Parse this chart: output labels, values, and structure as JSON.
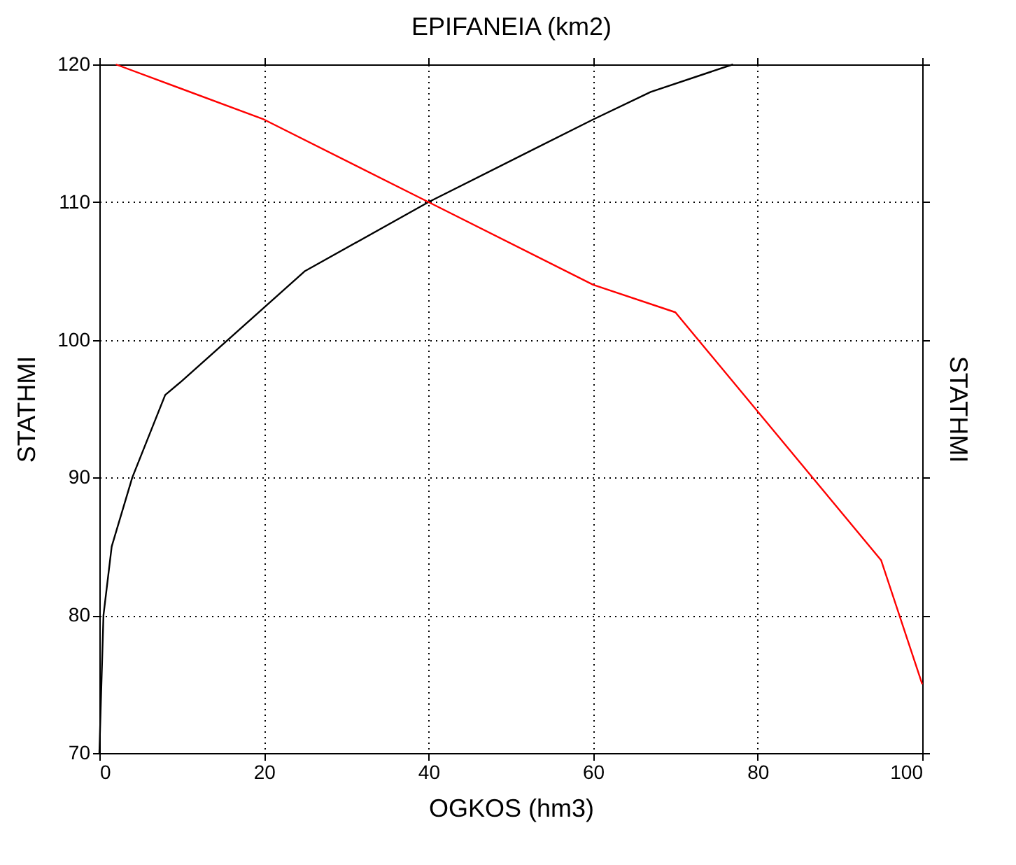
{
  "chart_data": {
    "type": "line",
    "xlabel": "OGKOS (hm3)",
    "x2label": "EPIFANEIA (km2)",
    "ylabel": "STATHMI",
    "y2label": "STATHMI",
    "xlim": [
      0,
      100
    ],
    "xticks": [
      0,
      20,
      40,
      60,
      80,
      100
    ],
    "ylim": [
      70,
      120
    ],
    "yticks": [
      70,
      80,
      90,
      100,
      110,
      120
    ],
    "grid": true,
    "line_style": "solid",
    "marker": "none",
    "series": [
      {
        "color": "#000000",
        "x": [
          0,
          0.5,
          1.5,
          4,
          8,
          10,
          25,
          40,
          60,
          67,
          77
        ],
        "values": [
          70,
          80,
          85,
          90,
          96,
          97,
          105,
          110,
          116,
          118,
          120
        ]
      },
      {
        "color": "#ff0000",
        "x": [
          2,
          20,
          40,
          60,
          70,
          95,
          100
        ],
        "values": [
          120,
          116,
          110,
          104,
          102,
          84,
          75
        ]
      }
    ]
  }
}
